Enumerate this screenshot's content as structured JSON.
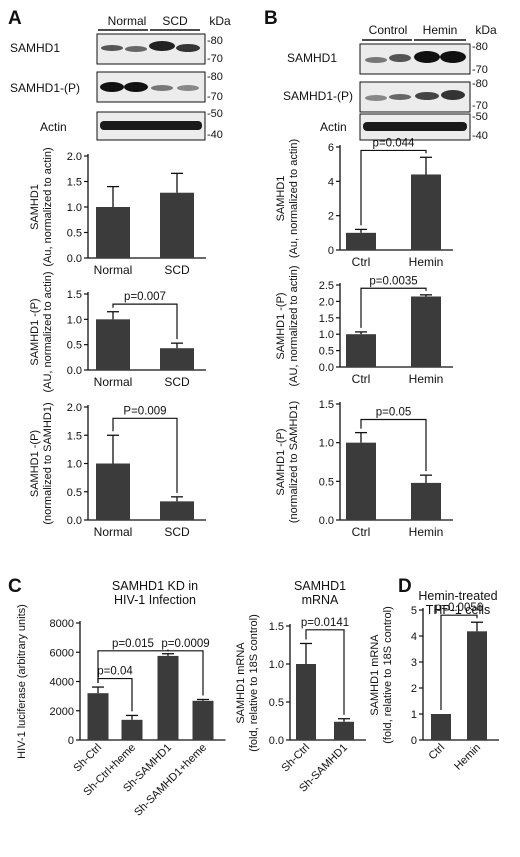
{
  "panel_labels": {
    "A": "A",
    "B": "B",
    "C": "C",
    "D": "D"
  },
  "blots": {
    "A": {
      "groups": [
        "Normal",
        "SCD"
      ],
      "rows": [
        {
          "label": "SAMHD1",
          "markers": [
            "-80",
            "-70"
          ]
        },
        {
          "label": "SAMHD1-(P)",
          "markers": [
            "-80",
            "-70"
          ]
        },
        {
          "label": "Actin",
          "markers": [
            "-50",
            "-40"
          ]
        }
      ],
      "unit": "kDa"
    },
    "B": {
      "groups": [
        "Control",
        "Hemin"
      ],
      "rows": [
        {
          "label": "SAMHD1",
          "markers": [
            "-80",
            "-70"
          ]
        },
        {
          "label": "SAMHD1-(P)",
          "markers": [
            "-80",
            "-70"
          ]
        },
        {
          "label": "Actin",
          "markers": [
            "-50",
            "-40"
          ]
        }
      ],
      "unit": "kDa"
    }
  },
  "chart_data": [
    {
      "id": "A1",
      "type": "bar",
      "categories": [
        "Normal",
        "SCD"
      ],
      "values": [
        1.0,
        1.28
      ],
      "errors": [
        0.4,
        0.38
      ],
      "ylabel": [
        "SAMHD1",
        "(Au, normalized to actin)"
      ],
      "ylim": [
        0,
        2.0
      ],
      "yticks": [
        "0.0",
        "0.5",
        "1.0",
        "1.5",
        "2.0"
      ],
      "title": "",
      "annotations": []
    },
    {
      "id": "A2",
      "type": "bar",
      "categories": [
        "Normal",
        "SCD"
      ],
      "values": [
        1.0,
        0.43
      ],
      "errors": [
        0.15,
        0.1
      ],
      "ylabel": [
        "SAMHD1 -(P)",
        "(AU, normalized to actin)"
      ],
      "ylim": [
        0,
        1.5
      ],
      "yticks": [
        "0.0",
        "0.5",
        "1.0",
        "1.5"
      ],
      "title": "",
      "annotations": [
        {
          "from": 0,
          "to": 1,
          "level": 1.3,
          "text": "p=0.007"
        }
      ]
    },
    {
      "id": "A3",
      "type": "bar",
      "categories": [
        "Normal",
        "SCD"
      ],
      "values": [
        1.0,
        0.33
      ],
      "errors": [
        0.5,
        0.08
      ],
      "ylabel": [
        "SAMHD1 -(P)",
        "(normalized to SAMHD1)"
      ],
      "ylim": [
        0,
        2.0
      ],
      "yticks": [
        "0.0",
        "0.5",
        "1.0",
        "1.5",
        "2.0"
      ],
      "title": "",
      "annotations": [
        {
          "from": 0,
          "to": 1,
          "level": 1.8,
          "text": "P=0.009"
        }
      ]
    },
    {
      "id": "B1",
      "type": "bar",
      "categories": [
        "Ctrl",
        "Hemin"
      ],
      "values": [
        1.0,
        4.4
      ],
      "errors": [
        0.2,
        1.0
      ],
      "ylabel": [
        "SAMHD1",
        "(Au, normalized to actin)"
      ],
      "ylim": [
        0,
        6
      ],
      "yticks": [
        "0",
        "2",
        "4",
        "6"
      ],
      "title": "",
      "annotations": [
        {
          "from": 0,
          "to": 1,
          "level": 5.8,
          "text": "p=0.044"
        }
      ]
    },
    {
      "id": "B2",
      "type": "bar",
      "categories": [
        "Ctrl",
        "Hemin"
      ],
      "values": [
        1.0,
        2.15
      ],
      "errors": [
        0.07,
        0.05
      ],
      "ylabel": [
        "SAMHD1 -(P)",
        "(AU, normalized to actin)"
      ],
      "ylim": [
        0,
        2.5
      ],
      "yticks": [
        "0.0",
        "0.5",
        "1.0",
        "1.5",
        "2.0",
        "2.5"
      ],
      "title": "",
      "annotations": [
        {
          "from": 0,
          "to": 1,
          "level": 2.4,
          "text": "p=0.0035"
        }
      ]
    },
    {
      "id": "B3",
      "type": "bar",
      "categories": [
        "Ctrl",
        "Hemin"
      ],
      "values": [
        1.0,
        0.48
      ],
      "errors": [
        0.13,
        0.1
      ],
      "ylabel": [
        "SAMHD1 -(P)",
        "(normalized to SAMHD1)"
      ],
      "ylim": [
        0,
        1.5
      ],
      "yticks": [
        "0.0",
        "0.5",
        "1.0",
        "1.5"
      ],
      "title": "",
      "annotations": [
        {
          "from": 0,
          "to": 1,
          "level": 1.3,
          "text": "p=0.05"
        }
      ]
    },
    {
      "id": "C1",
      "type": "bar",
      "categories": [
        "Sh-Ctrl",
        "Sh-Ctrl+heme",
        "Sh-SAMHD1",
        "Sh-SAMHD1+heme"
      ],
      "values": [
        3200,
        1380,
        5750,
        2680
      ],
      "errors": [
        420,
        300,
        150,
        90
      ],
      "ylabel": [
        "HIV-1 luciferase (arbitrary units)"
      ],
      "ylim": [
        0,
        8000
      ],
      "yticks": [
        "0",
        "2000",
        "4000",
        "6000",
        "8000"
      ],
      "title": [
        "SAMHD1 KD in",
        "HIV-1 Infection"
      ],
      "annotations": [
        {
          "from": 0,
          "to": 1,
          "level": 4200,
          "text": "p=0.04"
        },
        {
          "from": 0,
          "to": 2,
          "level": 6100,
          "text": "p=0.015"
        },
        {
          "from": 2,
          "to": 3,
          "level": 6100,
          "text": "p=0.0009"
        }
      ]
    },
    {
      "id": "C2",
      "type": "bar",
      "categories": [
        "Sh-Ctrl",
        "Sh-SAMHD1"
      ],
      "values": [
        1.0,
        0.24
      ],
      "errors": [
        0.27,
        0.04
      ],
      "ylabel": [
        "SAMHD1 mRNA",
        "(fold, relative to 18S control)"
      ],
      "ylim": [
        0,
        1.5
      ],
      "yticks": [
        "0.0",
        "0.5",
        "1.0",
        "1.5"
      ],
      "title": [
        "SAMHD1",
        "mRNA"
      ],
      "annotations": [
        {
          "from": 0,
          "to": 1,
          "level": 1.45,
          "text": "p=0.0141"
        }
      ]
    },
    {
      "id": "D1",
      "type": "bar",
      "categories": [
        "Ctrl",
        "Hemin"
      ],
      "values": [
        1.0,
        4.18
      ],
      "errors": [
        0,
        0.35
      ],
      "ylabel": [
        "SAMHD1 mRNA",
        "(fold, relative to 18S control)"
      ],
      "ylim": [
        0,
        5
      ],
      "yticks": [
        "0",
        "1",
        "2",
        "3",
        "4",
        "5"
      ],
      "title": [
        "Hemin-treated",
        "THP-1 cells"
      ],
      "annotations": [
        {
          "from": 0,
          "to": 1,
          "level": 4.8,
          "text": "p=0.0056"
        }
      ]
    }
  ]
}
